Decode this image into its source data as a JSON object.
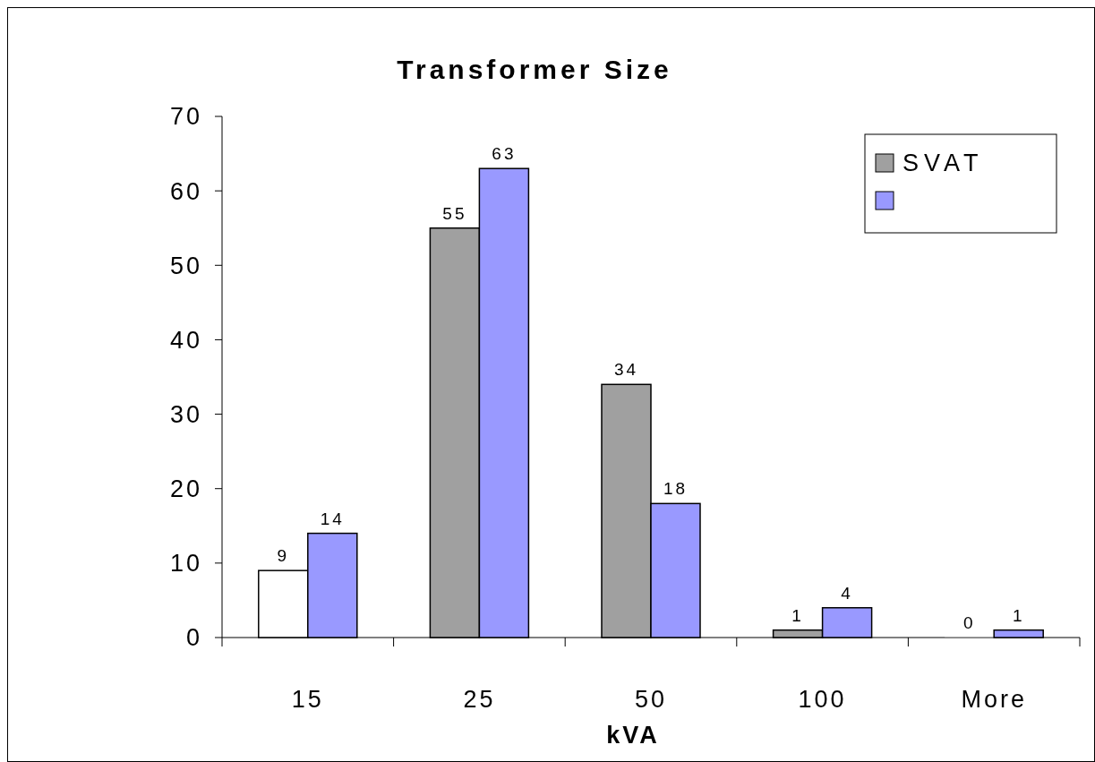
{
  "chart_data": {
    "type": "bar",
    "title": "Transformer Size",
    "xlabel": "kVA",
    "categories": [
      "15",
      "25",
      "50",
      "100",
      "More"
    ],
    "series": [
      {
        "name": "SVAT",
        "color": "#a0a0a0",
        "colors": [
          "#ffffff",
          "#a0a0a0",
          "#a0a0a0",
          "#a0a0a0",
          "#a0a0a0"
        ],
        "values": [
          9,
          55,
          34,
          1,
          0
        ]
      },
      {
        "color": "#9999ff",
        "values": [
          14,
          63,
          18,
          4,
          1
        ]
      }
    ],
    "ylim": [
      0,
      70
    ],
    "yticks": [
      0,
      10,
      20,
      30,
      40,
      50,
      60,
      70
    ],
    "grid": false,
    "legend": "top right",
    "data_labels": true
  }
}
